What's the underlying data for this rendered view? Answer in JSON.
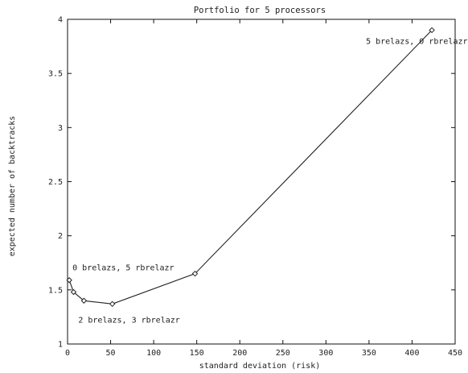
{
  "chart_data": {
    "type": "line",
    "title": "Portfolio for 5 processors",
    "xlabel": "standard deviation (risk)",
    "ylabel": "expected number of backtracks",
    "xlim": [
      0,
      450
    ],
    "ylim": [
      1,
      4
    ],
    "xticks": [
      "0",
      "50",
      "100",
      "150",
      "200",
      "250",
      "300",
      "350",
      "400",
      "450"
    ],
    "yticks": [
      "1",
      "1.5",
      "2",
      "2.5",
      "3",
      "3.5",
      "4"
    ],
    "grid": false,
    "series": [
      {
        "x": [
          2,
          7,
          19,
          52,
          148,
          423
        ],
        "y": [
          1.59,
          1.48,
          1.4,
          1.37,
          1.65,
          3.9
        ]
      }
    ],
    "annotations": [
      {
        "text": "0 brelazs, 5 rbrelazr",
        "x": 2,
        "y": 1.59
      },
      {
        "text": "2 brelazs, 3 rbrelazr",
        "x": 19,
        "y": 1.4
      },
      {
        "text": "5 brelazs, 0 rbrelazr",
        "x": 423,
        "y": 3.9
      }
    ]
  }
}
